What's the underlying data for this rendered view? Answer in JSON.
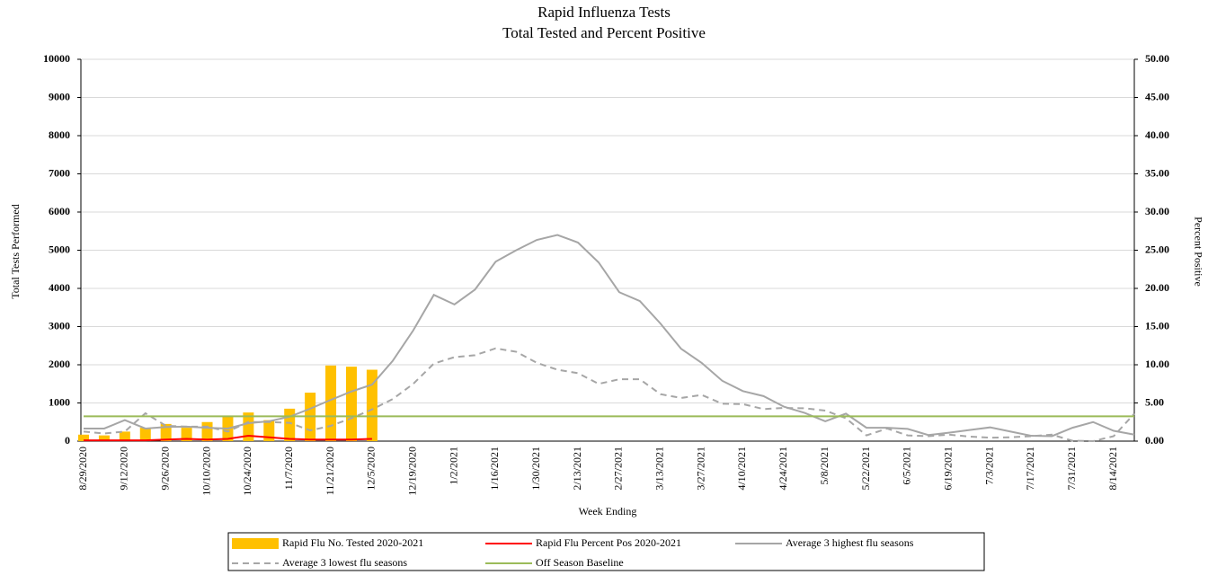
{
  "chart_data": {
    "type": "combo",
    "title": "Rapid Influenza  Tests",
    "subtitle": "Total Tested and Percent Positive",
    "xlabel": "Week Ending",
    "ylabel": "Total Tests Performed",
    "y2label": "Percent Positive",
    "categories": [
      "8/29/2020",
      null,
      "9/12/2020",
      null,
      "9/26/2020",
      null,
      "10/10/2020",
      null,
      "10/24/2020",
      null,
      "11/7/2020",
      null,
      "11/21/2020",
      null,
      "12/5/2020",
      null,
      "12/19/2020",
      null,
      "1/2/2021",
      null,
      "1/16/2021",
      null,
      "1/30/2021",
      null,
      "2/13/2021",
      null,
      "2/27/2021",
      null,
      "3/13/2021",
      null,
      "3/27/2021",
      null,
      "4/10/2021",
      null,
      "4/24/2021",
      null,
      "5/8/2021",
      null,
      "5/22/2021",
      null,
      "6/5/2021",
      null,
      "6/19/2021",
      null,
      "7/3/2021",
      null,
      "7/17/2021",
      null,
      "7/31/2021",
      null,
      "8/14/2021",
      null
    ],
    "ylim": [
      0,
      10000
    ],
    "yticks": [
      0,
      1000,
      2000,
      3000,
      4000,
      5000,
      6000,
      7000,
      8000,
      9000,
      10000
    ],
    "y2lim": [
      0,
      50
    ],
    "y2ticks": [
      {
        "value": 0,
        "label": "0.00"
      },
      {
        "value": 5,
        "label": "5.00"
      },
      {
        "value": 10,
        "label": "10.00"
      },
      {
        "value": 15,
        "label": "15.00"
      },
      {
        "value": 20,
        "label": "20.00"
      },
      {
        "value": 25,
        "label": "25.00"
      },
      {
        "value": 30,
        "label": "30.00"
      },
      {
        "value": 35,
        "label": "35.00"
      },
      {
        "value": 40,
        "label": "40.00"
      },
      {
        "value": 45,
        "label": "45.00"
      },
      {
        "value": 50,
        "label": "50.00"
      }
    ],
    "grid": true,
    "series": [
      {
        "name": "Rapid Flu No. Tested 2020-2021",
        "type": "bar",
        "color": "#ffc000",
        "values": [
          170,
          150,
          250,
          350,
          450,
          350,
          500,
          650,
          750,
          550,
          850,
          1270,
          1980,
          1950,
          1870,
          null,
          null,
          null,
          null,
          null,
          null,
          null,
          null,
          null,
          null,
          null,
          null,
          null,
          null,
          null,
          null,
          null,
          null,
          null,
          null,
          null,
          null,
          null,
          null,
          null,
          null,
          null,
          null,
          null,
          null,
          null,
          null,
          null,
          null,
          null,
          null,
          null
        ]
      },
      {
        "name": "Rapid Flu Percent Pos 2020-2021",
        "type": "line",
        "axis": "y2",
        "color": "#ff0000",
        "values": [
          0.1,
          0.1,
          0.1,
          0.1,
          0.2,
          0.3,
          0.2,
          0.3,
          0.7,
          0.5,
          0.3,
          0.2,
          0.2,
          0.2,
          0.3,
          null,
          null,
          null,
          null,
          null,
          null,
          null,
          null,
          null,
          null,
          null,
          null,
          null,
          null,
          null,
          null,
          null,
          null,
          null,
          null,
          null,
          null,
          null,
          null,
          null,
          null,
          null,
          null,
          null,
          null,
          null,
          null,
          null,
          null,
          null,
          null,
          null
        ]
      },
      {
        "name": "Average 3 highest flu seasons",
        "type": "line",
        "color": "#a6a6a6",
        "values": [
          330,
          330,
          550,
          330,
          370,
          380,
          350,
          330,
          470,
          520,
          640,
          850,
          1080,
          1300,
          1480,
          2100,
          2900,
          3830,
          3580,
          3970,
          4700,
          5000,
          5270,
          5400,
          5200,
          4680,
          3900,
          3670,
          3080,
          2420,
          2050,
          1580,
          1310,
          1180,
          900,
          740,
          520,
          720,
          350,
          350,
          320,
          160,
          220,
          290,
          360,
          250,
          140,
          130,
          350,
          500,
          270,
          170
        ]
      },
      {
        "name": "Average 3 lowest flu seasons",
        "type": "line",
        "dashed": true,
        "color": "#a6a6a6",
        "values": [
          250,
          200,
          250,
          730,
          400,
          380,
          380,
          250,
          500,
          500,
          480,
          280,
          400,
          600,
          830,
          1100,
          1500,
          2030,
          2200,
          2250,
          2430,
          2340,
          2050,
          1870,
          1780,
          1500,
          1620,
          1620,
          1230,
          1130,
          1210,
          980,
          970,
          840,
          870,
          860,
          800,
          600,
          150,
          330,
          150,
          130,
          170,
          120,
          90,
          100,
          130,
          170,
          10,
          0,
          130,
          720
        ]
      },
      {
        "name": "Off Season Baseline",
        "type": "line",
        "color": "#9bbb59",
        "values": [
          650,
          650,
          650,
          650,
          650,
          650,
          650,
          650,
          650,
          650,
          650,
          650,
          650,
          650,
          650,
          650,
          650,
          650,
          650,
          650,
          650,
          650,
          650,
          650,
          650,
          650,
          650,
          650,
          650,
          650,
          650,
          650,
          650,
          650,
          650,
          650,
          650,
          650,
          650,
          650,
          650,
          650,
          650,
          650,
          650,
          650,
          650,
          650,
          650,
          650,
          650,
          650
        ]
      }
    ]
  }
}
